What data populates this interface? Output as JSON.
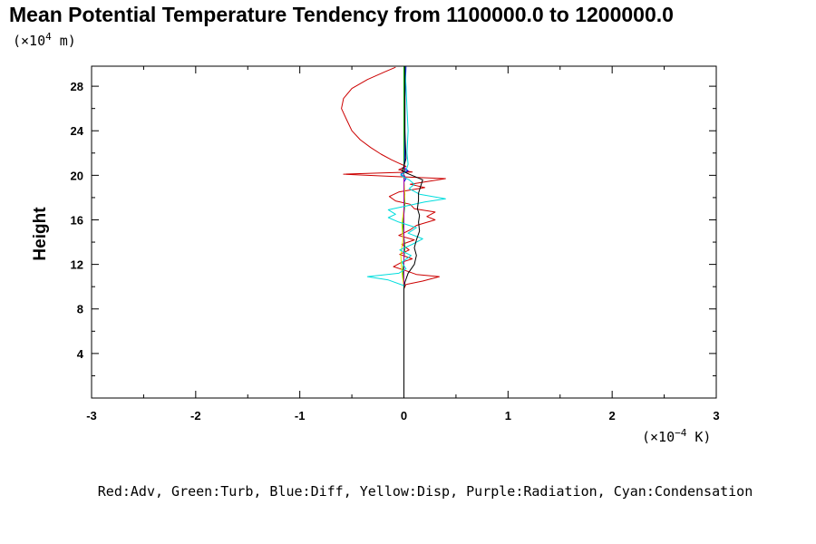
{
  "chart_data": {
    "type": "line",
    "title": "Mean Potential Temperature Tendency from 1100000.0 to 1200000.0",
    "ylabel": "Height",
    "yunit_prefix": "(×10",
    "yunit_exp": "4",
    "yunit_suffix": " m)",
    "xunit_prefix": "(×10",
    "xunit_exp": "−4",
    "xunit_suffix": " K)",
    "xlim": [
      -3,
      3
    ],
    "ylim": [
      0,
      29.8
    ],
    "xticks": [
      {
        "value": -3,
        "label": "-3"
      },
      {
        "value": -2,
        "label": "-2"
      },
      {
        "value": -1,
        "label": "-1"
      },
      {
        "value": 0,
        "label": "0"
      },
      {
        "value": 1,
        "label": "1"
      },
      {
        "value": 2,
        "label": "2"
      },
      {
        "value": 3,
        "label": "3"
      }
    ],
    "yticks": [
      {
        "value": 4,
        "label": "4"
      },
      {
        "value": 8,
        "label": "8"
      },
      {
        "value": 12,
        "label": "12"
      },
      {
        "value": 16,
        "label": "16"
      },
      {
        "value": 20,
        "label": "20"
      },
      {
        "value": 24,
        "label": "24"
      },
      {
        "value": 28,
        "label": "28"
      }
    ],
    "legend_text": "Red:Adv, Green:Turb, Blue:Diff, Yellow:Disp, Purple:Radiation, Cyan:Condensation",
    "series": [
      {
        "key": "adv",
        "color": "#cc0000",
        "points": [
          [
            0,
            0
          ],
          [
            0,
            9.8
          ],
          [
            0.02,
            10.2
          ],
          [
            0.18,
            10.5
          ],
          [
            0.34,
            10.9
          ],
          [
            0.12,
            11.1
          ],
          [
            0.0,
            11.5
          ],
          [
            -0.1,
            11.8
          ],
          [
            -0.02,
            12.2
          ],
          [
            0.08,
            12.5
          ],
          [
            -0.04,
            12.9
          ],
          [
            0.05,
            13.3
          ],
          [
            -0.02,
            13.8
          ],
          [
            0.1,
            14.2
          ],
          [
            -0.05,
            14.6
          ],
          [
            0.06,
            15.1
          ],
          [
            0.12,
            15.5
          ],
          [
            0.3,
            16.0
          ],
          [
            0.22,
            16.3
          ],
          [
            0.3,
            16.7
          ],
          [
            0.1,
            17.0
          ],
          [
            0.06,
            17.4
          ],
          [
            -0.08,
            17.7
          ],
          [
            -0.14,
            18.1
          ],
          [
            -0.05,
            18.5
          ],
          [
            0.2,
            18.9
          ],
          [
            0.06,
            19.2
          ],
          [
            0.4,
            19.7
          ],
          [
            -0.1,
            19.9
          ],
          [
            -0.58,
            20.1
          ],
          [
            -0.25,
            20.2
          ],
          [
            0.08,
            20.3
          ],
          [
            -0.05,
            20.5
          ],
          [
            0.02,
            20.8
          ],
          [
            -0.05,
            21.1
          ],
          [
            -0.12,
            21.4
          ],
          [
            -0.22,
            21.9
          ],
          [
            -0.32,
            22.5
          ],
          [
            -0.42,
            23.2
          ],
          [
            -0.5,
            24.0
          ],
          [
            -0.55,
            25.0
          ],
          [
            -0.6,
            26.0
          ],
          [
            -0.58,
            26.9
          ],
          [
            -0.5,
            27.8
          ],
          [
            -0.35,
            28.6
          ],
          [
            -0.18,
            29.3
          ],
          [
            -0.08,
            29.7
          ]
        ]
      },
      {
        "key": "turb",
        "color": "#00aa00",
        "points": [
          [
            0,
            0
          ],
          [
            0,
            9.8
          ],
          [
            -0.01,
            11.5
          ],
          [
            0.01,
            13.5
          ],
          [
            -0.01,
            15.5
          ],
          [
            0.01,
            17.5
          ],
          [
            0,
            19.5
          ],
          [
            0,
            29.8
          ]
        ]
      },
      {
        "key": "diff",
        "color": "#0000ee",
        "points": [
          [
            0,
            0
          ],
          [
            0,
            19.4
          ],
          [
            0.02,
            19.7
          ],
          [
            -0.03,
            20.1
          ],
          [
            0.04,
            20.4
          ],
          [
            0,
            20.7
          ],
          [
            0.01,
            21.5
          ],
          [
            0.01,
            24
          ],
          [
            0.01,
            27
          ],
          [
            0.02,
            29.8
          ]
        ]
      },
      {
        "key": "disp",
        "color": "#dddd00",
        "points": [
          [
            0,
            0
          ],
          [
            0,
            10
          ],
          [
            -0.02,
            11.3
          ],
          [
            -0.03,
            12.8
          ],
          [
            -0.01,
            14.2
          ],
          [
            -0.02,
            15.6
          ],
          [
            0,
            17
          ],
          [
            0.01,
            18.3
          ],
          [
            0,
            19.5
          ]
        ]
      },
      {
        "key": "radiation",
        "color": "#aa00aa",
        "points": [
          [
            0,
            0
          ],
          [
            0,
            19.6
          ],
          [
            0.01,
            19.9
          ],
          [
            -0.01,
            20.2
          ],
          [
            0.01,
            20.5
          ],
          [
            0,
            20.8
          ]
        ]
      },
      {
        "key": "condensation",
        "color": "#00dddd",
        "points": [
          [
            0,
            0
          ],
          [
            0,
            10.1
          ],
          [
            -0.15,
            10.6
          ],
          [
            -0.35,
            10.9
          ],
          [
            -0.05,
            11.2
          ],
          [
            0.02,
            11.6
          ],
          [
            -0.02,
            12.2
          ],
          [
            0.07,
            12.8
          ],
          [
            -0.04,
            13.3
          ],
          [
            0.08,
            13.8
          ],
          [
            0.18,
            14.3
          ],
          [
            0.04,
            14.8
          ],
          [
            0.12,
            15.3
          ],
          [
            -0.05,
            15.8
          ],
          [
            -0.15,
            16.2
          ],
          [
            -0.08,
            16.5
          ],
          [
            -0.15,
            16.9
          ],
          [
            0.05,
            17.3
          ],
          [
            0.2,
            17.6
          ],
          [
            0.4,
            17.9
          ],
          [
            0.15,
            18.3
          ],
          [
            0.05,
            18.8
          ],
          [
            0.1,
            19.2
          ],
          [
            0.05,
            19.6
          ],
          [
            -0.03,
            20
          ],
          [
            0.02,
            20.4
          ],
          [
            0.04,
            21
          ],
          [
            0.03,
            22
          ],
          [
            0.04,
            24
          ],
          [
            0.03,
            26
          ],
          [
            0.02,
            28
          ],
          [
            0.01,
            29.8
          ]
        ]
      },
      {
        "key": "total",
        "color": "#000000",
        "points": [
          [
            0,
            0
          ],
          [
            0,
            9.8
          ],
          [
            0.01,
            10.4
          ],
          [
            0.04,
            11.2
          ],
          [
            0.1,
            12
          ],
          [
            0.12,
            12.8
          ],
          [
            0.1,
            13.5
          ],
          [
            0.12,
            14.2
          ],
          [
            0.15,
            15
          ],
          [
            0.14,
            15.8
          ],
          [
            0.15,
            16.4
          ],
          [
            0.13,
            17
          ],
          [
            0.14,
            17.8
          ],
          [
            0.14,
            18.4
          ],
          [
            0.16,
            19
          ],
          [
            0.18,
            19.6
          ],
          [
            0.05,
            20.1
          ],
          [
            -0.02,
            20.4
          ],
          [
            0,
            20.8
          ],
          [
            0.02,
            21.5
          ],
          [
            0.01,
            24
          ],
          [
            0.01,
            27
          ],
          [
            0.01,
            29.8
          ]
        ]
      }
    ]
  }
}
